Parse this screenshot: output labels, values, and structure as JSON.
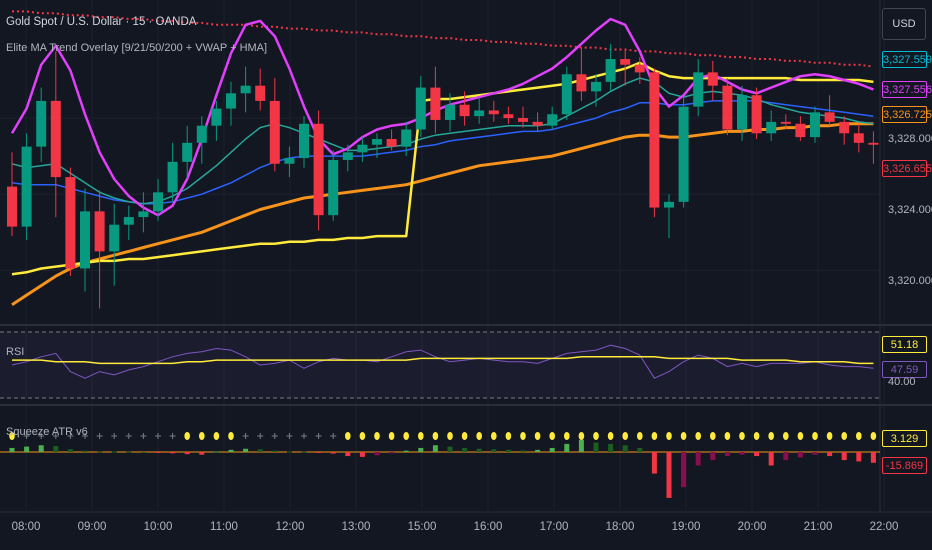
{
  "header": {
    "title": "Gold Spot / U.S. Dollar · 15 · OANDA",
    "indicator": "Elite MA Trend Overlay [9/21/50/200 + VWAP + HMA]"
  },
  "currency_button": "USD",
  "colors": {
    "background": "#131722",
    "up": "#089981",
    "down": "#f23645",
    "ma9": "#089981",
    "ma21": "#2962ff",
    "ma50": "#f7931a",
    "hma": "#e040fb",
    "vwap": "#ffeb3b",
    "ma200": "#f23645",
    "rsi": "#7e57c2",
    "rsi_ma": "#ffeb3b"
  },
  "price_axis": {
    "ticks": [
      "3,328.000",
      "3,324.000",
      "3,320.000"
    ],
    "tags": [
      {
        "label": "3,327.559",
        "color": "#00bcd4"
      },
      {
        "label": "3,327.556",
        "color": "#e040fb"
      },
      {
        "label": "3,326.725",
        "color": "#f7931a"
      },
      {
        "label": "3,326.655",
        "color": "#f23645"
      }
    ]
  },
  "rsi_pane": {
    "label": "RSI",
    "values": [
      "51.18",
      "47.59"
    ],
    "tick": "40.00"
  },
  "squeeze_pane": {
    "label": "Squeeze ATR v6",
    "values": [
      "3.129",
      "-15.869"
    ]
  },
  "time_axis": [
    "08:00",
    "09:00",
    "10:00",
    "11:00",
    "12:00",
    "13:00",
    "15:00",
    "16:00",
    "17:00",
    "18:00",
    "19:00",
    "20:00",
    "21:00",
    "22:00"
  ],
  "chart_data": {
    "type": "candlestick",
    "y_range": [
      3317.5,
      3334.2
    ],
    "candles": [
      [
        3324.4,
        3326.2,
        3321.8,
        3322.3
      ],
      [
        3322.3,
        3327.2,
        3321.6,
        3326.5
      ],
      [
        3326.5,
        3329.6,
        3325.7,
        3328.9
      ],
      [
        3328.9,
        3331.5,
        3322.8,
        3324.9
      ],
      [
        3324.9,
        3325.4,
        3319.7,
        3320.1
      ],
      [
        3320.1,
        3324.3,
        3318.9,
        3323.1
      ],
      [
        3323.1,
        3324.2,
        3318.0,
        3321.0
      ],
      [
        3321.0,
        3323.5,
        3319.2,
        3322.4
      ],
      [
        3322.4,
        3323.4,
        3321.6,
        3322.8
      ],
      [
        3322.8,
        3324.1,
        3322.0,
        3323.1
      ],
      [
        3323.1,
        3324.8,
        3322.6,
        3324.1
      ],
      [
        3324.1,
        3326.7,
        3323.6,
        3325.7
      ],
      [
        3325.7,
        3327.6,
        3324.8,
        3326.7
      ],
      [
        3326.7,
        3328.1,
        3325.6,
        3327.6
      ],
      [
        3327.6,
        3328.9,
        3326.8,
        3328.5
      ],
      [
        3328.5,
        3329.9,
        3327.6,
        3329.3
      ],
      [
        3329.3,
        3330.7,
        3328.3,
        3329.7
      ],
      [
        3329.7,
        3330.6,
        3328.4,
        3328.9
      ],
      [
        3328.9,
        3330.1,
        3325.2,
        3325.6
      ],
      [
        3325.6,
        3326.5,
        3324.9,
        3325.9
      ],
      [
        3325.9,
        3328.1,
        3325.4,
        3327.7
      ],
      [
        3327.7,
        3328.4,
        3322.1,
        3322.9
      ],
      [
        3322.9,
        3326.3,
        3322.6,
        3325.8
      ],
      [
        3325.8,
        3326.6,
        3325.2,
        3326.2
      ],
      [
        3326.2,
        3327.0,
        3325.7,
        3326.6
      ],
      [
        3326.6,
        3327.2,
        3325.9,
        3326.9
      ],
      [
        3326.9,
        3327.4,
        3326.3,
        3326.5
      ],
      [
        3326.5,
        3327.8,
        3326.0,
        3327.4
      ],
      [
        3327.4,
        3330.2,
        3327.0,
        3329.6
      ],
      [
        3329.6,
        3330.7,
        3327.2,
        3327.9
      ],
      [
        3327.9,
        3329.3,
        3327.3,
        3328.7
      ],
      [
        3328.7,
        3329.4,
        3327.6,
        3328.1
      ],
      [
        3328.1,
        3329.1,
        3327.7,
        3328.4
      ],
      [
        3328.4,
        3328.9,
        3327.8,
        3328.2
      ],
      [
        3328.2,
        3328.6,
        3327.7,
        3328.0
      ],
      [
        3328.0,
        3328.6,
        3327.5,
        3327.8
      ],
      [
        3327.8,
        3328.3,
        3327.3,
        3327.6
      ],
      [
        3327.6,
        3328.6,
        3327.4,
        3328.2
      ],
      [
        3328.2,
        3330.7,
        3327.9,
        3330.3
      ],
      [
        3330.3,
        3331.7,
        3328.9,
        3329.4
      ],
      [
        3329.4,
        3330.3,
        3328.6,
        3329.9
      ],
      [
        3329.9,
        3331.9,
        3329.4,
        3331.1
      ],
      [
        3331.1,
        3331.6,
        3329.7,
        3330.8
      ],
      [
        3330.8,
        3331.2,
        3329.8,
        3330.4
      ],
      [
        3330.4,
        3330.6,
        3322.8,
        3323.3
      ],
      [
        3323.3,
        3324.0,
        3321.7,
        3323.6
      ],
      [
        3323.6,
        3329.1,
        3323.3,
        3328.6
      ],
      [
        3328.6,
        3331.1,
        3328.1,
        3330.4
      ],
      [
        3330.4,
        3331.0,
        3328.9,
        3329.7
      ],
      [
        3329.7,
        3330.1,
        3327.1,
        3327.4
      ],
      [
        3327.4,
        3329.7,
        3326.8,
        3329.2
      ],
      [
        3329.2,
        3329.6,
        3326.9,
        3327.2
      ],
      [
        3327.2,
        3328.4,
        3326.8,
        3327.8
      ],
      [
        3327.8,
        3328.2,
        3327.4,
        3327.7
      ],
      [
        3327.7,
        3328.1,
        3326.8,
        3327.0
      ],
      [
        3327.0,
        3328.6,
        3326.7,
        3328.3
      ],
      [
        3328.3,
        3329.2,
        3327.6,
        3327.8
      ],
      [
        3327.8,
        3328.1,
        3326.6,
        3327.2
      ],
      [
        3327.2,
        3327.7,
        3326.2,
        3326.7
      ],
      [
        3326.7,
        3327.3,
        3325.6,
        3326.6
      ]
    ],
    "ma9": [
      3325.6,
      3325.4,
      3325.5,
      3325.6,
      3325.1,
      3324.6,
      3324.1,
      3323.8,
      3323.6,
      3323.5,
      3323.6,
      3323.9,
      3324.3,
      3324.9,
      3325.5,
      3326.2,
      3326.9,
      3327.5,
      3327.7,
      3327.5,
      3327.2,
      3326.9,
      3326.6,
      3326.3,
      3326.3,
      3326.4,
      3326.5,
      3326.6,
      3326.9,
      3327.1,
      3327.2,
      3327.3,
      3327.4,
      3327.5,
      3327.6,
      3327.6,
      3327.6,
      3327.7,
      3328.1,
      3328.5,
      3328.9,
      3329.4,
      3329.8,
      3330.1,
      3329.9,
      3329.3,
      3329.1,
      3329.3,
      3329.4,
      3329.3,
      3329.2,
      3329.0,
      3328.7,
      3328.5,
      3328.3,
      3328.2,
      3328.1,
      3328.0,
      3327.8,
      3327.7
    ],
    "ma21": [
      3324.6,
      3324.5,
      3324.5,
      3324.5,
      3324.3,
      3324.1,
      3323.9,
      3323.7,
      3323.6,
      3323.5,
      3323.5,
      3323.6,
      3323.8,
      3324.0,
      3324.3,
      3324.6,
      3325.0,
      3325.4,
      3325.7,
      3325.9,
      3326.0,
      3326.0,
      3326.0,
      3326.0,
      3326.0,
      3326.1,
      3326.2,
      3326.3,
      3326.5,
      3326.6,
      3326.8,
      3326.9,
      3327.0,
      3327.1,
      3327.2,
      3327.3,
      3327.3,
      3327.4,
      3327.6,
      3327.8,
      3328.0,
      3328.3,
      3328.5,
      3328.8,
      3328.8,
      3328.7,
      3328.7,
      3328.8,
      3328.9,
      3328.9,
      3328.9,
      3328.9,
      3328.8,
      3328.7,
      3328.6,
      3328.5,
      3328.4,
      3328.3,
      3328.2,
      3328.1
    ],
    "ma50": [
      3318.2,
      3318.7,
      3319.2,
      3319.7,
      3320.1,
      3320.4,
      3320.6,
      3320.8,
      3321.0,
      3321.2,
      3321.4,
      3321.6,
      3321.8,
      3322.0,
      3322.3,
      3322.6,
      3322.9,
      3323.2,
      3323.4,
      3323.6,
      3323.8,
      3323.9,
      3324.0,
      3324.1,
      3324.2,
      3324.3,
      3324.4,
      3324.5,
      3324.7,
      3324.9,
      3325.1,
      3325.3,
      3325.5,
      3325.6,
      3325.7,
      3325.8,
      3325.9,
      3326.0,
      3326.2,
      3326.4,
      3326.6,
      3326.8,
      3327.0,
      3327.1,
      3327.1,
      3327.0,
      3327.0,
      3327.1,
      3327.2,
      3327.3,
      3327.3,
      3327.4,
      3327.4,
      3327.5,
      3327.5,
      3327.6,
      3327.6,
      3327.7,
      3327.7,
      3327.7
    ],
    "hma": [
      3327.2,
      3328.5,
      3330.8,
      3331.8,
      3330.5,
      3328.2,
      3326.2,
      3324.8,
      3323.9,
      3323.3,
      3322.9,
      3323.4,
      3324.8,
      3326.9,
      3329.2,
      3331.4,
      3332.9,
      3333.1,
      3332.3,
      3330.6,
      3328.6,
      3326.9,
      3326.1,
      3326.4,
      3327.0,
      3327.4,
      3327.6,
      3327.7,
      3328.0,
      3328.4,
      3328.7,
      3328.9,
      3329.1,
      3329.3,
      3329.5,
      3329.8,
      3330.2,
      3330.6,
      3331.2,
      3331.9,
      3332.6,
      3333.2,
      3332.9,
      3331.5,
      3329.6,
      3328.6,
      3329.2,
      3330.1,
      3330.3,
      3329.9,
      3329.5,
      3329.3,
      3329.6,
      3329.9,
      3330.2,
      3330.3,
      3330.2,
      3330.0,
      3329.8,
      3329.5
    ],
    "vwap": [
      3319.8,
      3319.9,
      3320.1,
      3320.2,
      3320.3,
      3320.4,
      3320.5,
      3320.5,
      3320.6,
      3320.6,
      3320.7,
      3320.8,
      3320.9,
      3321.0,
      3321.1,
      3321.2,
      3321.3,
      3321.4,
      3321.4,
      3321.5,
      3321.5,
      3321.6,
      3321.6,
      3321.7,
      3321.7,
      3321.8,
      3321.8,
      3321.8,
      3328.9,
      3329.0,
      3329.0,
      3329.1,
      3329.2,
      3329.3,
      3329.4,
      3329.5,
      3329.6,
      3329.7,
      3329.8,
      3330.0,
      3330.2,
      3330.4,
      3330.6,
      3330.9,
      3330.5,
      3330.2,
      3330.1,
      3330.1,
      3330.1,
      3330.1,
      3330.1,
      3330.1,
      3330.1,
      3330.1,
      3330.0,
      3330.0,
      3330.0,
      3330.0,
      3330.0,
      3329.9
    ],
    "ma200": [
      3333.6,
      3333.6,
      3333.5,
      3333.5,
      3333.4,
      3333.4,
      3333.3,
      3333.3,
      3333.2,
      3333.2,
      3333.1,
      3333.1,
      3333.0,
      3333.0,
      3332.9,
      3332.9,
      3332.9,
      3332.8,
      3332.8,
      3332.7,
      3332.7,
      3332.6,
      3332.6,
      3332.5,
      3332.5,
      3332.4,
      3332.4,
      3332.3,
      3332.3,
      3332.2,
      3332.2,
      3332.1,
      3332.1,
      3332.0,
      3332.0,
      3331.9,
      3331.9,
      3331.8,
      3331.8,
      3331.7,
      3331.7,
      3331.6,
      3331.6,
      3331.5,
      3331.5,
      3331.4,
      3331.4,
      3331.3,
      3331.3,
      3331.2,
      3331.2,
      3331.1,
      3331.1,
      3331.0,
      3331.0,
      3330.9,
      3330.9,
      3330.8,
      3330.8,
      3330.7
    ],
    "rsi": [
      50,
      52,
      55,
      57,
      46,
      42,
      46,
      44,
      47,
      49,
      52,
      55,
      57,
      58,
      60,
      59,
      55,
      50,
      51,
      53,
      48,
      52,
      54,
      53,
      53,
      52,
      55,
      58,
      59,
      55,
      52,
      53,
      54,
      53,
      52,
      52,
      51,
      54,
      57,
      58,
      59,
      62,
      60,
      56,
      42,
      46,
      52,
      56,
      54,
      49,
      51,
      49,
      51,
      51,
      51,
      52,
      50,
      49,
      49,
      48
    ],
    "rsi_ma": [
      53,
      53,
      53,
      52,
      52,
      52,
      51,
      51,
      51,
      51,
      51,
      51,
      52,
      52,
      53,
      53,
      53,
      53,
      53,
      53,
      53,
      53,
      53,
      53,
      53,
      53,
      53,
      53,
      54,
      54,
      54,
      54,
      54,
      54,
      54,
      54,
      54,
      54,
      54,
      55,
      55,
      55,
      55,
      55,
      55,
      54,
      54,
      54,
      54,
      54,
      53,
      53,
      53,
      53,
      52,
      52,
      52,
      52,
      51,
      51
    ],
    "squeeze_hist": [
      1.5,
      2.0,
      2.5,
      2.2,
      1.0,
      0.5,
      0.3,
      0.2,
      0.1,
      0.0,
      -0.2,
      -0.5,
      -0.8,
      -1.0,
      0.2,
      0.8,
      1.2,
      1.0,
      0.5,
      0.2,
      0.1,
      -0.3,
      -0.6,
      -1.5,
      -1.8,
      -1.2,
      -0.5,
      0.5,
      1.5,
      2.5,
      2.0,
      1.5,
      1.2,
      1.0,
      0.8,
      0.6,
      0.8,
      1.5,
      3.0,
      4.5,
      3.5,
      3.0,
      2.5,
      1.5,
      -8,
      -17,
      -13,
      -5,
      -3,
      -1.5,
      -1,
      -1.5,
      -5,
      -3,
      -2,
      -1,
      -1.5,
      -3,
      -3.5,
      -4
    ],
    "squeeze_dots": [
      "y",
      "g",
      "g",
      "g",
      "g",
      "g",
      "g",
      "g",
      "g",
      "g",
      "g",
      "g",
      "y",
      "y",
      "y",
      "y",
      "g",
      "g",
      "g",
      "g",
      "g",
      "g",
      "g",
      "y",
      "y",
      "y",
      "y",
      "y",
      "y",
      "y",
      "y",
      "y",
      "y",
      "y",
      "y",
      "y",
      "y",
      "y",
      "y",
      "y",
      "y",
      "y",
      "y",
      "y",
      "y",
      "y",
      "y",
      "y",
      "y",
      "y",
      "y",
      "y",
      "y",
      "y",
      "y",
      "y",
      "y",
      "y",
      "y",
      "y"
    ]
  }
}
